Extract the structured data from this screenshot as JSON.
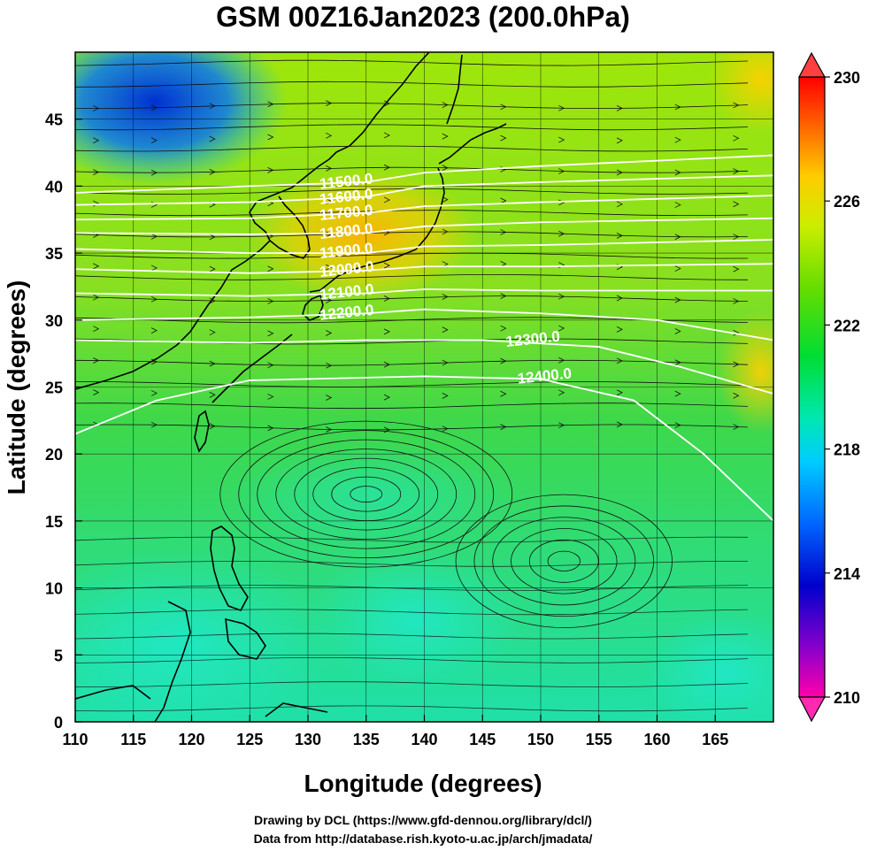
{
  "title": "GSM 00Z16Jan2023 (200.0hPa)",
  "footer": {
    "line1": "Drawing by DCL (https://www.gfd-dennou.org/library/dcl/)",
    "line2": "Data from http://database.rish.kyoto-u.ac.jp/arch/jmadata/"
  },
  "chart_data": {
    "type": "heatmap",
    "xlabel": "Longitude (degrees)",
    "ylabel": "Latitude  (degrees)",
    "xlim": [
      110,
      170
    ],
    "ylim": [
      0,
      50
    ],
    "xticks": [
      "110",
      "115",
      "120",
      "125",
      "130",
      "135",
      "140",
      "145",
      "150",
      "155",
      "160",
      "165"
    ],
    "yticks": [
      "0",
      "5",
      "10",
      "15",
      "20",
      "25",
      "30",
      "35",
      "40",
      "45"
    ],
    "grid": true,
    "colorbar": {
      "range": [
        210,
        230
      ],
      "ticks": [
        "210",
        "214",
        "218",
        "222",
        "226",
        "230"
      ],
      "colors": [
        "#ff00aa",
        "#8800cc",
        "#0000cc",
        "#0066ff",
        "#00ccff",
        "#00e8b0",
        "#00dd33",
        "#66dd00",
        "#ccee00",
        "#ffcc00",
        "#ff6600",
        "#ff0000"
      ]
    },
    "contours": [
      {
        "label": "11500.0",
        "points": [
          [
            110,
            39.5
          ],
          [
            125,
            40.0
          ],
          [
            135,
            40.3
          ],
          [
            140,
            41.0
          ],
          [
            150,
            41.5
          ],
          [
            170,
            42.3
          ]
        ]
      },
      {
        "label": "11600.0",
        "points": [
          [
            110,
            38.6
          ],
          [
            125,
            38.8
          ],
          [
            135,
            39.2
          ],
          [
            140,
            40.0
          ],
          [
            150,
            40.3
          ],
          [
            170,
            40.8
          ]
        ]
      },
      {
        "label": "11700.0",
        "points": [
          [
            110,
            37.5
          ],
          [
            125,
            37.6
          ],
          [
            135,
            38.0
          ],
          [
            140,
            38.5
          ],
          [
            150,
            38.8
          ],
          [
            170,
            39.3
          ]
        ]
      },
      {
        "label": "11800.0",
        "points": [
          [
            110,
            36.5
          ],
          [
            125,
            36.4
          ],
          [
            135,
            36.5
          ],
          [
            140,
            37.0
          ],
          [
            150,
            37.3
          ],
          [
            170,
            37.6
          ]
        ]
      },
      {
        "label": "11900.0",
        "points": [
          [
            110,
            35.3
          ],
          [
            125,
            35.0
          ],
          [
            135,
            35.0
          ],
          [
            140,
            35.5
          ],
          [
            150,
            35.6
          ],
          [
            170,
            36.0
          ]
        ]
      },
      {
        "label": "12000.0",
        "points": [
          [
            110,
            33.8
          ],
          [
            125,
            33.5
          ],
          [
            135,
            33.7
          ],
          [
            140,
            34.0
          ],
          [
            150,
            34.0
          ],
          [
            170,
            34.2
          ]
        ]
      },
      {
        "label": "12100.0",
        "points": [
          [
            110,
            32.0
          ],
          [
            125,
            31.8
          ],
          [
            135,
            32.0
          ],
          [
            140,
            32.3
          ],
          [
            150,
            32.2
          ],
          [
            170,
            32.2
          ]
        ]
      },
      {
        "label": "12200.0",
        "points": [
          [
            110,
            30.0
          ],
          [
            125,
            30.2
          ],
          [
            135,
            30.5
          ],
          [
            140,
            30.8
          ],
          [
            150,
            30.5
          ],
          [
            160,
            30.0
          ],
          [
            170,
            28.5
          ]
        ]
      },
      {
        "label": "12300.0",
        "points": [
          [
            110,
            28.5
          ],
          [
            125,
            28.3
          ],
          [
            135,
            28.5
          ],
          [
            145,
            28.5
          ],
          [
            155,
            28.0
          ],
          [
            162,
            26.5
          ],
          [
            170,
            24.5
          ]
        ]
      },
      {
        "label": "12400.0",
        "points": [
          [
            110,
            21.5
          ],
          [
            117,
            24.0
          ],
          [
            125,
            25.5
          ],
          [
            140,
            25.8
          ],
          [
            150,
            25.6
          ],
          [
            158,
            24.0
          ],
          [
            164,
            20.0
          ],
          [
            170,
            15.0
          ]
        ]
      }
    ]
  }
}
